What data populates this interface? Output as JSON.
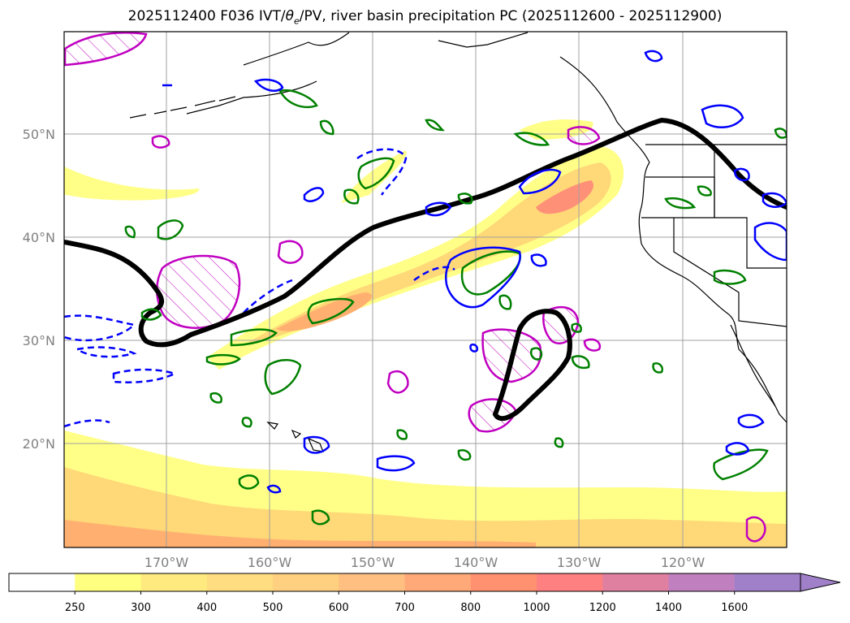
{
  "map": {
    "title": {
      "prefix": "2025112400 F036 IVT/",
      "theta": "θ",
      "theta_sub": "e",
      "suffix": "/PV, river basin precipitation PC (2025112600 - 2025112900)"
    },
    "lat_labels": [
      "50°N",
      "40°N",
      "30°N",
      "20°N"
    ],
    "lon_labels": [
      "170°W",
      "160°W",
      "150°W",
      "140°W",
      "130°W",
      "120°W"
    ],
    "colorbar": {
      "ticks": [
        "250",
        "300",
        "400",
        "500",
        "600",
        "700",
        "800",
        "1000",
        "1200",
        "1400",
        "1600"
      ],
      "colors": [
        "#ffffff",
        "#ffff80",
        "#ffea80",
        "#ffdd80",
        "#ffd080",
        "#ffbf80",
        "#ffa878",
        "#ff9070",
        "#ff8080",
        "#e080a0",
        "#c080c0",
        "#a080c8"
      ]
    },
    "colors": {
      "ivt_low": "#ffff88",
      "ivt_mid": "#ffd878",
      "ivt_high": "#ffb070",
      "ivt_core": "#ff9078",
      "pv_line": "#000000",
      "green_contour": "#008000",
      "blue_contour": "#0000ff",
      "magenta_contour": "#c000c0",
      "coast": "#000000",
      "grid": "#a0a0a0"
    }
  }
}
